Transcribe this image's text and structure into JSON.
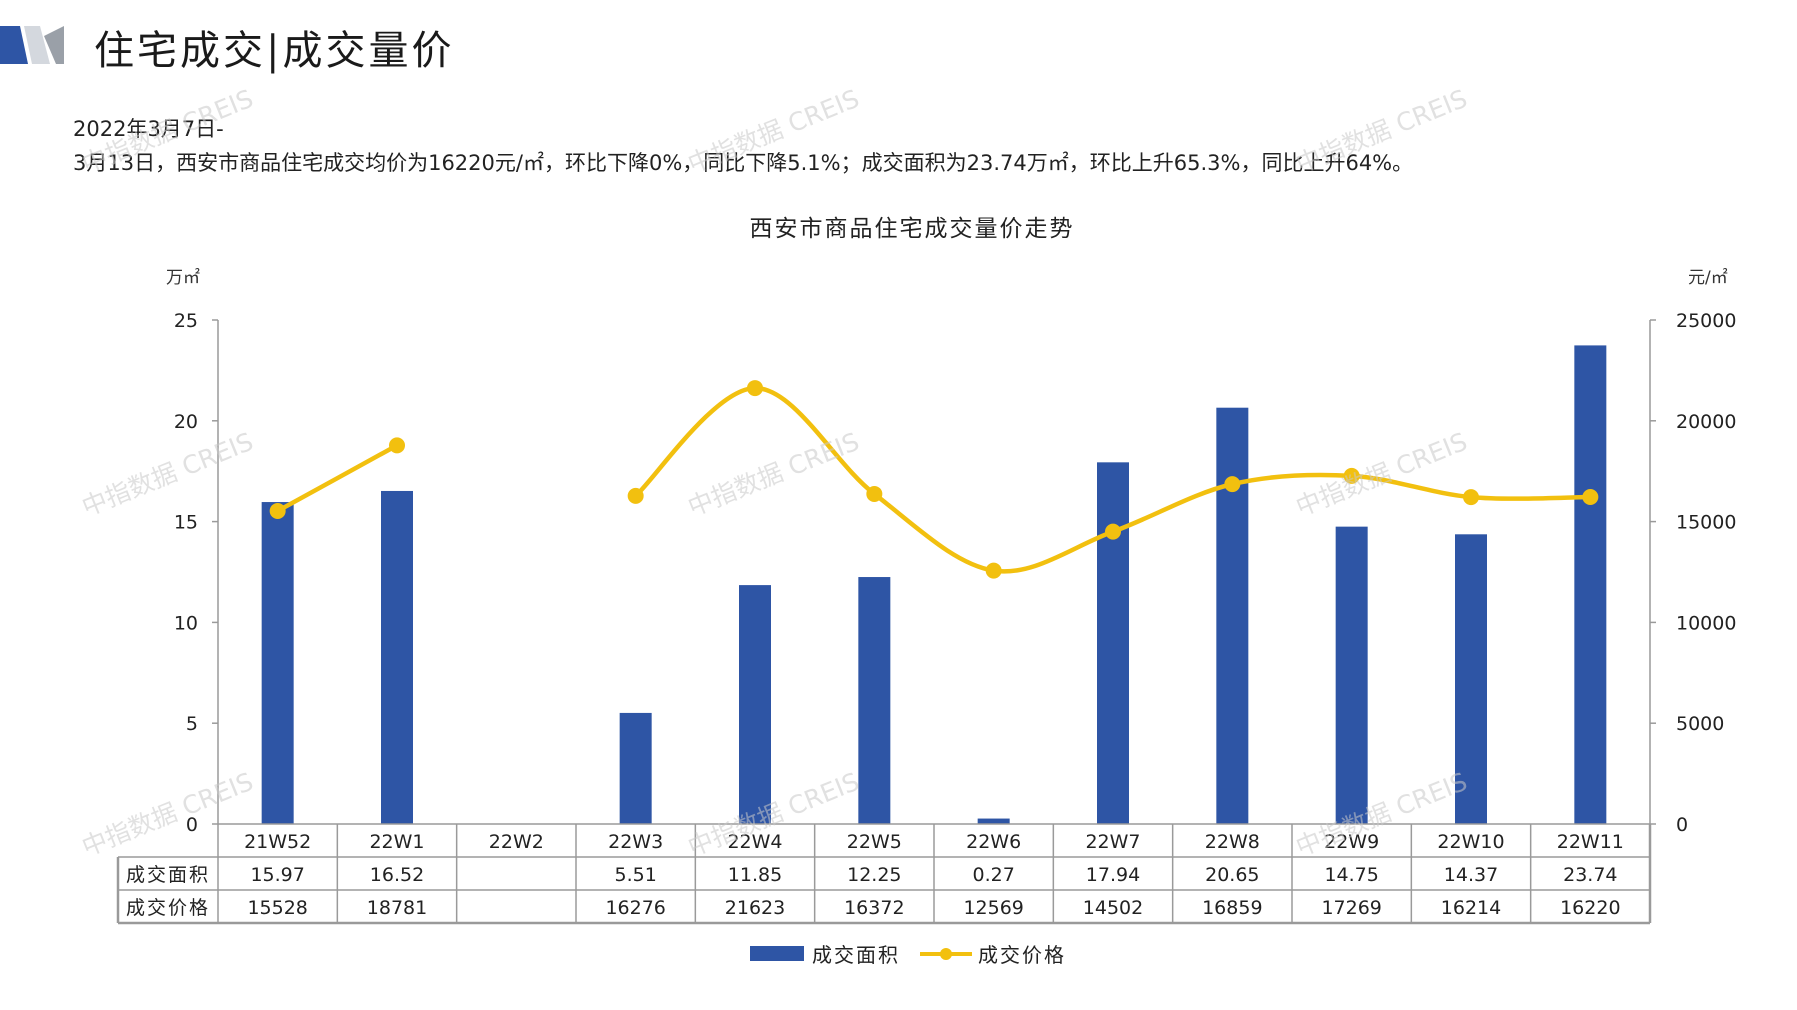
{
  "header": {
    "title": "住宅成交|成交量价"
  },
  "summary": {
    "line1": "2022年3月7日-",
    "line2": "3月13日，西安市商品住宅成交均价为16220元/㎡，环比下降0%，同比下降5.1%；成交面积为23.74万㎡，环比上升65.3%，同比上升64%。"
  },
  "watermark": "中指数据 CREIS",
  "colors": {
    "bar": "#2e55a5",
    "line": "#f2c00f",
    "logo_blue": "#2e55a5",
    "logo_grey": "#9aa0a8"
  },
  "chart_data": {
    "type": "bar",
    "title": "西安市商品住宅成交量价走势",
    "categories": [
      "21W52",
      "22W1",
      "22W2",
      "22W3",
      "22W4",
      "22W5",
      "22W6",
      "22W7",
      "22W8",
      "22W9",
      "22W10",
      "22W11"
    ],
    "left_axis": {
      "unit": "万㎡",
      "ticks": [
        "0",
        "5",
        "10",
        "15",
        "20",
        "25"
      ],
      "range": [
        0,
        25
      ]
    },
    "right_axis": {
      "unit": "元/㎡",
      "ticks": [
        "0",
        "5000",
        "10000",
        "15000",
        "20000",
        "25000"
      ],
      "range": [
        0,
        25000
      ]
    },
    "series": [
      {
        "name": "成交面积",
        "type": "bar",
        "axis": "left",
        "values": [
          15.97,
          16.52,
          null,
          5.51,
          11.85,
          12.25,
          0.27,
          17.94,
          20.65,
          14.75,
          14.37,
          23.74
        ],
        "labels": [
          "15.97",
          "16.52",
          "",
          "5.51",
          "11.85",
          "12.25",
          "0.27",
          "17.94",
          "20.65",
          "14.75",
          "14.37",
          "23.74"
        ]
      },
      {
        "name": "成交价格",
        "type": "line",
        "axis": "right",
        "smooth": true,
        "values": [
          15528,
          18781,
          null,
          16276,
          21623,
          16372,
          12569,
          14502,
          16859,
          17269,
          16214,
          16220
        ],
        "labels": [
          "15528",
          "18781",
          "",
          "16276",
          "21623",
          "16372",
          "12569",
          "14502",
          "16859",
          "17269",
          "16214",
          "16220"
        ]
      }
    ],
    "legend": {
      "position": "bottom",
      "items": [
        "成交面积",
        "成交价格"
      ]
    },
    "grid": false,
    "data_table": true
  }
}
